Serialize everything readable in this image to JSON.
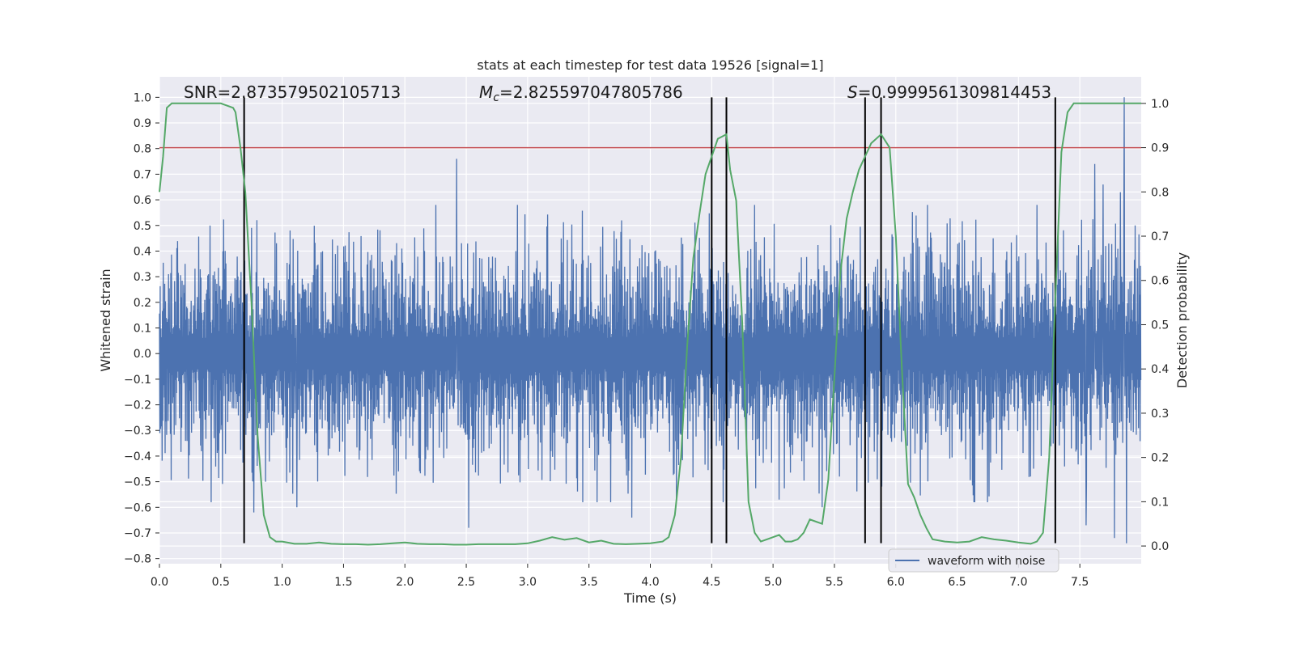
{
  "chart_data": {
    "type": "line",
    "title": "stats at each timestep for test data 19526 [signal=1]",
    "xlabel": "Time (s)",
    "ylabel_left": "Whitened strain",
    "ylabel_right": "Detection probability",
    "xlim": [
      0.0,
      8.0
    ],
    "ylim_left": [
      -0.82,
      1.08
    ],
    "ylim_right": [
      -0.04,
      1.06
    ],
    "x_ticks": [
      0.0,
      0.5,
      1.0,
      1.5,
      2.0,
      2.5,
      3.0,
      3.5,
      4.0,
      4.5,
      5.0,
      5.5,
      6.0,
      6.5,
      7.0,
      7.5
    ],
    "x_tick_labels": [
      "0.0",
      "0.5",
      "1.0",
      "1.5",
      "2.0",
      "2.5",
      "3.0",
      "3.5",
      "4.0",
      "4.5",
      "5.0",
      "5.5",
      "6.0",
      "6.5",
      "7.0",
      "7.5"
    ],
    "y_left_ticks": [
      1.0,
      0.9,
      0.8,
      0.7,
      0.6,
      0.5,
      0.4,
      0.3,
      0.2,
      0.1,
      0.0,
      -0.1,
      -0.2,
      -0.3,
      -0.4,
      -0.5,
      -0.6,
      -0.7,
      -0.8
    ],
    "y_left_tick_labels": [
      "1.0",
      "0.9",
      "0.8",
      "0.7",
      "0.6",
      "0.5",
      "0.4",
      "0.3",
      "0.2",
      "0.1",
      "0.0",
      "−0.1",
      "−0.2",
      "−0.3",
      "−0.4",
      "−0.5",
      "−0.6",
      "−0.7",
      "−0.8"
    ],
    "y_right_ticks": [
      1.0,
      0.9,
      0.8,
      0.7,
      0.6,
      0.5,
      0.4,
      0.3,
      0.2,
      0.1,
      0.0
    ],
    "y_right_tick_labels": [
      "1.0",
      "0.9",
      "0.8",
      "0.7",
      "0.6",
      "0.5",
      "0.4",
      "0.3",
      "0.2",
      "0.1",
      "0.0"
    ],
    "grid": true,
    "annotations": {
      "snr": "SNR=2.873579502105713",
      "mc_symbol": "M",
      "mc_subscript": "c",
      "mc_value": "=2.825597047805786",
      "s_symbol": "S",
      "s_value": "=0.9999561309814453"
    },
    "threshold_right": 0.9,
    "vertical_lines_x": [
      0.69,
      4.5,
      4.62,
      5.75,
      5.88,
      7.3
    ],
    "vertical_lines_ymin": -0.74,
    "vertical_lines_ymax": 1.0,
    "waveform": {
      "name": "waveform with noise",
      "typical_amplitude": 0.3,
      "big_spikes": [
        {
          "x": 2.42,
          "y": 0.76
        },
        {
          "x": 7.86,
          "y": 1.0
        },
        {
          "x": 7.62,
          "y": 0.74
        },
        {
          "x": 7.69,
          "y": 0.66
        },
        {
          "x": 7.83,
          "y": 0.63
        },
        {
          "x": 2.52,
          "y": -0.68
        },
        {
          "x": 3.85,
          "y": -0.64
        },
        {
          "x": 0.77,
          "y": -0.62
        },
        {
          "x": 1.12,
          "y": -0.6
        },
        {
          "x": 7.3,
          "y": -0.73
        },
        {
          "x": 7.88,
          "y": -0.74
        },
        {
          "x": 7.78,
          "y": -0.72
        },
        {
          "x": 7.55,
          "y": -0.67
        },
        {
          "x": 5.05,
          "y": -0.57
        },
        {
          "x": 5.4,
          "y": -0.6
        }
      ]
    },
    "detection_probability": {
      "x": [
        0.0,
        0.03,
        0.06,
        0.1,
        0.15,
        0.2,
        0.3,
        0.4,
        0.5,
        0.6,
        0.62,
        0.66,
        0.7,
        0.75,
        0.8,
        0.85,
        0.9,
        0.95,
        1.0,
        1.1,
        1.2,
        1.3,
        1.4,
        1.5,
        1.6,
        1.7,
        1.8,
        1.9,
        2.0,
        2.1,
        2.2,
        2.3,
        2.4,
        2.5,
        2.6,
        2.7,
        2.8,
        2.9,
        3.0,
        3.1,
        3.2,
        3.3,
        3.4,
        3.5,
        3.6,
        3.7,
        3.8,
        3.9,
        4.0,
        4.1,
        4.15,
        4.2,
        4.25,
        4.3,
        4.35,
        4.4,
        4.45,
        4.5,
        4.55,
        4.62,
        4.65,
        4.7,
        4.75,
        4.8,
        4.85,
        4.9,
        4.95,
        5.0,
        5.05,
        5.1,
        5.15,
        5.2,
        5.25,
        5.3,
        5.35,
        5.4,
        5.45,
        5.5,
        5.55,
        5.6,
        5.65,
        5.7,
        5.75,
        5.8,
        5.88,
        5.95,
        6.0,
        6.05,
        6.1,
        6.15,
        6.2,
        6.25,
        6.3,
        6.4,
        6.5,
        6.6,
        6.7,
        6.8,
        6.9,
        7.0,
        7.1,
        7.15,
        7.2,
        7.25,
        7.3,
        7.35,
        7.4,
        7.45,
        7.5,
        7.6,
        7.7,
        7.8,
        7.9,
        8.0
      ],
      "y": [
        0.8,
        0.88,
        0.99,
        1.0,
        1.0,
        1.0,
        1.0,
        1.0,
        1.0,
        0.99,
        0.98,
        0.9,
        0.8,
        0.55,
        0.25,
        0.07,
        0.02,
        0.01,
        0.01,
        0.005,
        0.005,
        0.008,
        0.005,
        0.004,
        0.004,
        0.003,
        0.004,
        0.006,
        0.008,
        0.005,
        0.004,
        0.004,
        0.003,
        0.003,
        0.004,
        0.004,
        0.004,
        0.004,
        0.006,
        0.012,
        0.02,
        0.014,
        0.018,
        0.008,
        0.012,
        0.005,
        0.004,
        0.005,
        0.006,
        0.01,
        0.02,
        0.07,
        0.2,
        0.45,
        0.65,
        0.75,
        0.84,
        0.88,
        0.92,
        0.93,
        0.85,
        0.78,
        0.5,
        0.1,
        0.03,
        0.01,
        0.015,
        0.02,
        0.025,
        0.01,
        0.01,
        0.015,
        0.03,
        0.06,
        0.055,
        0.05,
        0.15,
        0.38,
        0.62,
        0.74,
        0.8,
        0.85,
        0.88,
        0.91,
        0.93,
        0.9,
        0.7,
        0.4,
        0.14,
        0.11,
        0.07,
        0.04,
        0.015,
        0.01,
        0.008,
        0.01,
        0.02,
        0.015,
        0.012,
        0.008,
        0.005,
        0.01,
        0.03,
        0.2,
        0.56,
        0.89,
        0.98,
        1.0,
        1.0,
        1.0,
        1.0,
        1.0,
        1.0,
        1.0
      ]
    },
    "legend": {
      "position": "lower-right",
      "entries": [
        "waveform with noise"
      ]
    },
    "colors": {
      "waveform": "#4c72b0",
      "probability": "#55a868",
      "threshold": "#c44e52",
      "vertical_lines": "#000000",
      "plot_background": "#eaeaf2",
      "grid": "#ffffff"
    }
  }
}
